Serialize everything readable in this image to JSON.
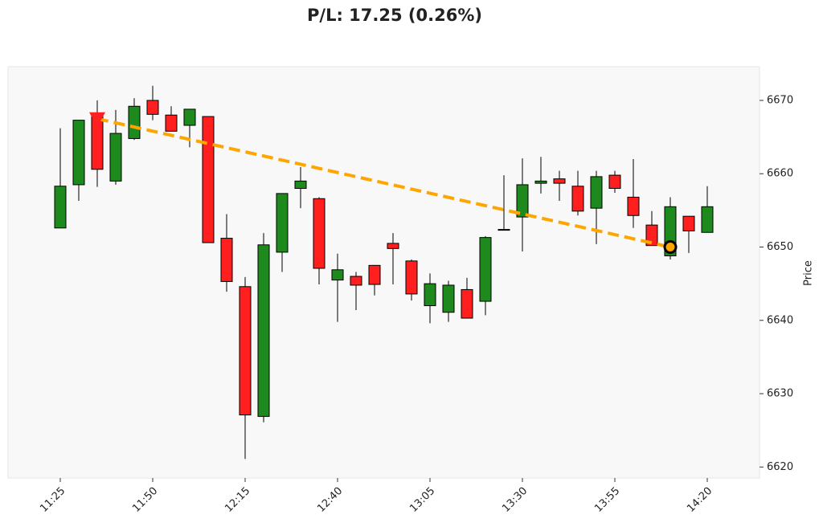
{
  "chart_data": {
    "type": "candlestick",
    "title": "P/L: 17.25 (0.26%)",
    "y_label": "Price",
    "categories": [
      "11:25",
      null,
      null,
      null,
      null,
      "11:50",
      null,
      null,
      null,
      null,
      "12:15",
      null,
      null,
      null,
      null,
      "12:40",
      null,
      null,
      null,
      null,
      "13:05",
      null,
      null,
      null,
      null,
      "13:30",
      null,
      null,
      null,
      null,
      "13:55",
      null,
      null,
      null,
      null,
      "14:20"
    ],
    "open": [
      6652.6,
      6658.5,
      6667.8,
      6659.0,
      6664.8,
      6670.0,
      6668.0,
      6666.6,
      6667.8,
      6651.2,
      6644.6,
      6626.9,
      6649.3,
      6658.0,
      6656.6,
      6645.5,
      6646.0,
      6647.5,
      6650.5,
      6648.1,
      6642.0,
      6641.1,
      6644.2,
      6642.6,
      6652.3,
      6654.1,
      6658.7,
      6659.3,
      6658.3,
      6655.3,
      6659.8,
      6656.8,
      6653.0,
      6648.8,
      6654.2,
      6652.0
    ],
    "high": [
      6666.2,
      6667.3,
      6670.0,
      6668.7,
      6670.3,
      6672.0,
      6669.2,
      6668.8,
      6667.8,
      6654.5,
      6645.9,
      6651.9,
      6657.3,
      6660.9,
      6656.8,
      6649.1,
      6646.6,
      6647.5,
      6651.9,
      6648.3,
      6646.4,
      6645.4,
      6645.8,
      6651.5,
      6659.8,
      6662.1,
      6662.3,
      6660.4,
      6660.4,
      6660.4,
      6660.4,
      6662.0,
      6654.9,
      6656.8,
      6654.2,
      6658.3
    ],
    "low": [
      6652.6,
      6656.3,
      6658.2,
      6658.5,
      6664.6,
      6667.3,
      6665.8,
      6663.6,
      6650.6,
      6643.9,
      6621.1,
      6626.1,
      6646.6,
      6655.3,
      6644.9,
      6639.8,
      6641.4,
      6643.4,
      6644.9,
      6642.7,
      6639.6,
      6639.8,
      6640.3,
      6640.7,
      6652.3,
      6649.4,
      6657.3,
      6656.3,
      6654.3,
      6650.4,
      6657.4,
      6652.6,
      6650.2,
      6648.3,
      6649.2,
      6652.0
    ],
    "close": [
      6658.3,
      6667.3,
      6660.6,
      6665.5,
      6669.2,
      6668.1,
      6665.8,
      6668.8,
      6650.6,
      6645.3,
      6627.1,
      6650.3,
      6657.3,
      6659.0,
      6647.1,
      6646.9,
      6644.8,
      6644.9,
      6649.8,
      6643.6,
      6645.0,
      6644.8,
      6640.3,
      6651.3,
      6652.4,
      6658.5,
      6659.0,
      6658.7,
      6654.9,
      6659.6,
      6658.0,
      6654.3,
      6650.2,
      6655.5,
      6652.2,
      6655.5
    ],
    "up_color": "#1e8a1e",
    "down_color": "#ff1f1f",
    "trade": {
      "entry_index": 2,
      "entry_price": 6667.5,
      "exit_index": 33,
      "exit_price": 6650.0,
      "line_color": "#ffa500",
      "entry_color": "#ff1f1f",
      "exit_color": "#000000"
    },
    "ylim": [
      6618.5,
      6674.6
    ],
    "yticks": [
      6620,
      6630,
      6640,
      6650,
      6660,
      6670
    ]
  }
}
